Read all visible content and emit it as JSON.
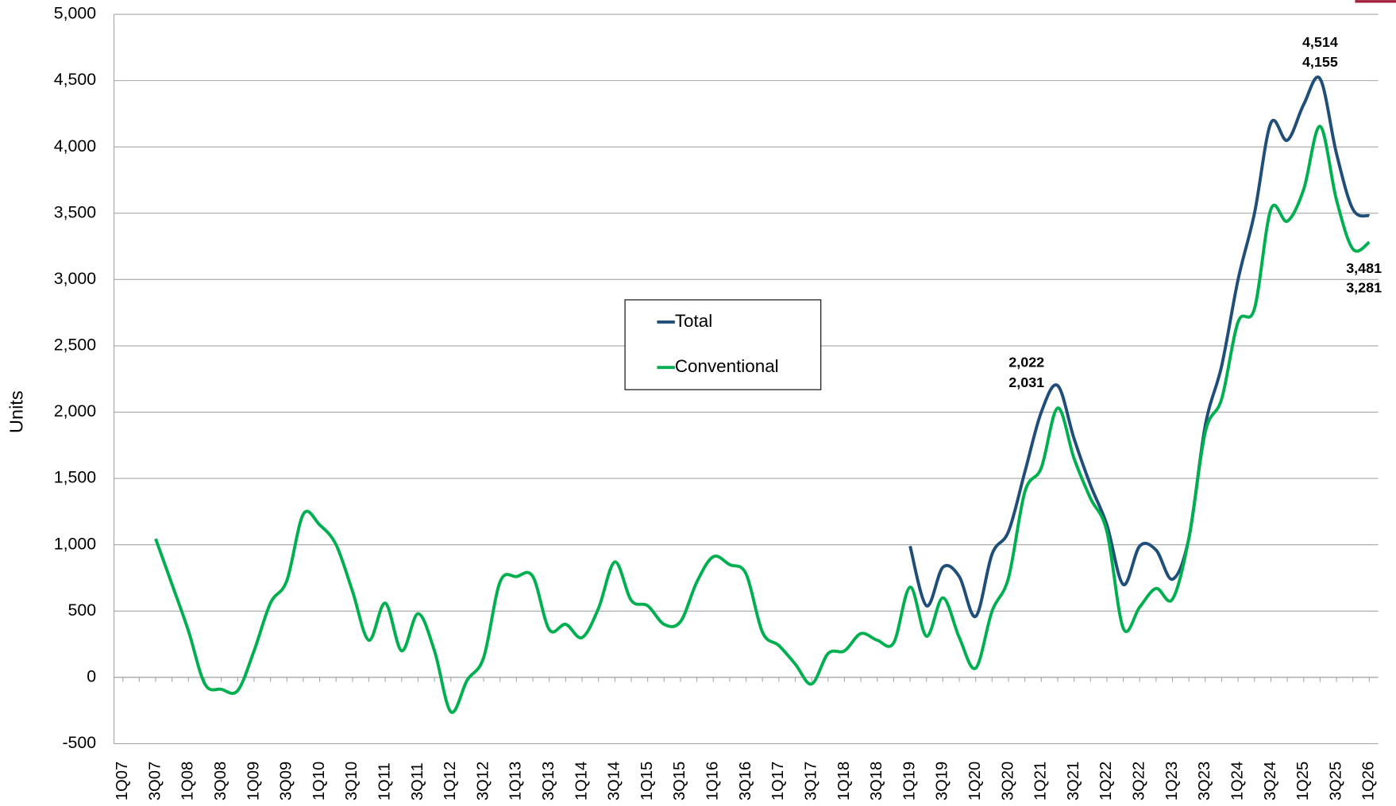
{
  "chart_data": {
    "type": "line",
    "y_label": "Units",
    "categories": [
      "1Q07",
      null,
      "3Q07",
      null,
      "1Q08",
      null,
      "3Q08",
      null,
      "1Q09",
      null,
      "3Q09",
      null,
      "1Q10",
      null,
      "3Q10",
      null,
      "1Q11",
      null,
      "3Q11",
      null,
      "1Q12",
      null,
      "3Q12",
      null,
      "1Q13",
      null,
      "3Q13",
      null,
      "1Q14",
      null,
      "3Q14",
      null,
      "1Q15",
      null,
      "3Q15",
      null,
      "1Q16",
      null,
      "3Q16",
      null,
      "1Q17",
      null,
      "3Q17",
      null,
      "1Q18",
      null,
      "3Q18",
      null,
      "1Q19",
      null,
      "3Q19",
      null,
      "1Q20",
      null,
      "3Q20",
      null,
      "1Q21",
      null,
      "3Q21",
      null,
      "1Q22",
      null,
      "3Q22",
      null,
      "1Q23",
      null,
      "3Q23",
      null,
      "1Q24",
      null,
      "3Q24",
      null,
      "1Q25",
      null,
      "3Q25",
      null,
      "1Q26"
    ],
    "series": [
      {
        "name": "Total",
        "color": "#1f4e79",
        "values": [
          null,
          null,
          null,
          null,
          null,
          null,
          null,
          null,
          null,
          null,
          null,
          null,
          null,
          null,
          null,
          null,
          null,
          null,
          null,
          null,
          null,
          null,
          null,
          null,
          null,
          null,
          null,
          null,
          null,
          null,
          null,
          null,
          null,
          null,
          null,
          null,
          null,
          null,
          null,
          null,
          null,
          null,
          null,
          null,
          null,
          null,
          null,
          null,
          990,
          540,
          830,
          760,
          460,
          930,
          1100,
          1550,
          2000,
          2200,
          1800,
          1450,
          1150,
          700,
          990,
          960,
          740,
          1050,
          1900,
          2350,
          3000,
          3500,
          4180,
          4050,
          4320,
          4514,
          3950,
          3530,
          3481
        ],
        "value_labels": [
          null,
          null,
          null,
          null,
          null,
          null,
          null,
          null,
          null,
          null,
          null,
          null,
          null,
          null,
          null,
          null,
          null,
          null,
          null,
          null,
          null,
          null,
          null,
          null,
          null,
          null,
          null,
          null,
          null,
          null,
          null,
          null,
          null,
          null,
          null,
          null,
          null,
          null,
          null,
          null,
          null,
          null,
          null,
          null,
          null,
          null,
          null,
          null,
          null,
          null,
          null,
          null,
          null,
          null,
          null,
          null,
          null,
          null,
          null,
          null,
          null,
          null,
          null,
          null,
          null,
          null,
          null,
          null,
          null,
          null,
          null,
          null,
          null,
          "4,514",
          null,
          null,
          "3,481"
        ]
      },
      {
        "name": "Conventional",
        "color": "#00b050",
        "values": [
          null,
          null,
          1045,
          700,
          350,
          -50,
          -90,
          -100,
          200,
          560,
          730,
          1230,
          1150,
          1000,
          650,
          280,
          560,
          200,
          480,
          200,
          -260,
          -20,
          150,
          720,
          760,
          760,
          360,
          400,
          300,
          520,
          870,
          580,
          540,
          400,
          420,
          720,
          910,
          850,
          780,
          340,
          240,
          100,
          -50,
          180,
          200,
          330,
          280,
          260,
          680,
          310,
          600,
          300,
          70,
          500,
          750,
          1400,
          1580,
          2031,
          1650,
          1350,
          1100,
          370,
          530,
          670,
          590,
          1050,
          1850,
          2100,
          2680,
          2780,
          3530,
          3440,
          3680,
          4155,
          3600,
          3230,
          3281
        ],
        "value_labels": [
          null,
          null,
          null,
          null,
          null,
          null,
          null,
          null,
          null,
          null,
          null,
          null,
          null,
          null,
          null,
          null,
          null,
          null,
          null,
          null,
          null,
          null,
          null,
          null,
          null,
          null,
          null,
          null,
          null,
          null,
          null,
          null,
          null,
          null,
          null,
          null,
          null,
          null,
          null,
          null,
          null,
          null,
          null,
          null,
          null,
          null,
          null,
          null,
          null,
          null,
          null,
          null,
          null,
          null,
          null,
          null,
          null,
          null,
          null,
          null,
          null,
          null,
          null,
          null,
          null,
          null,
          null,
          null,
          null,
          null,
          null,
          null,
          null,
          "4,155",
          null,
          null,
          "3,281"
        ]
      }
    ],
    "annotations": [
      "2,022",
      "2,031"
    ],
    "ylim": [
      -500,
      5000
    ],
    "yticks": [
      -500,
      0,
      500,
      {
        "value": 1000,
        "label": "1,000"
      },
      {
        "value": 1500,
        "label": "1,500"
      },
      {
        "value": 2000,
        "label": "2,000"
      },
      {
        "value": 2500,
        "label": "2,500"
      },
      {
        "value": 3000,
        "label": "3,000"
      },
      {
        "value": 3500,
        "label": "3,500"
      },
      {
        "value": 4000,
        "label": "4,000"
      },
      {
        "value": 4500,
        "label": "4,500"
      },
      {
        "value": 5000,
        "label": "5,000"
      }
    ],
    "grid": true,
    "legend": "center"
  }
}
